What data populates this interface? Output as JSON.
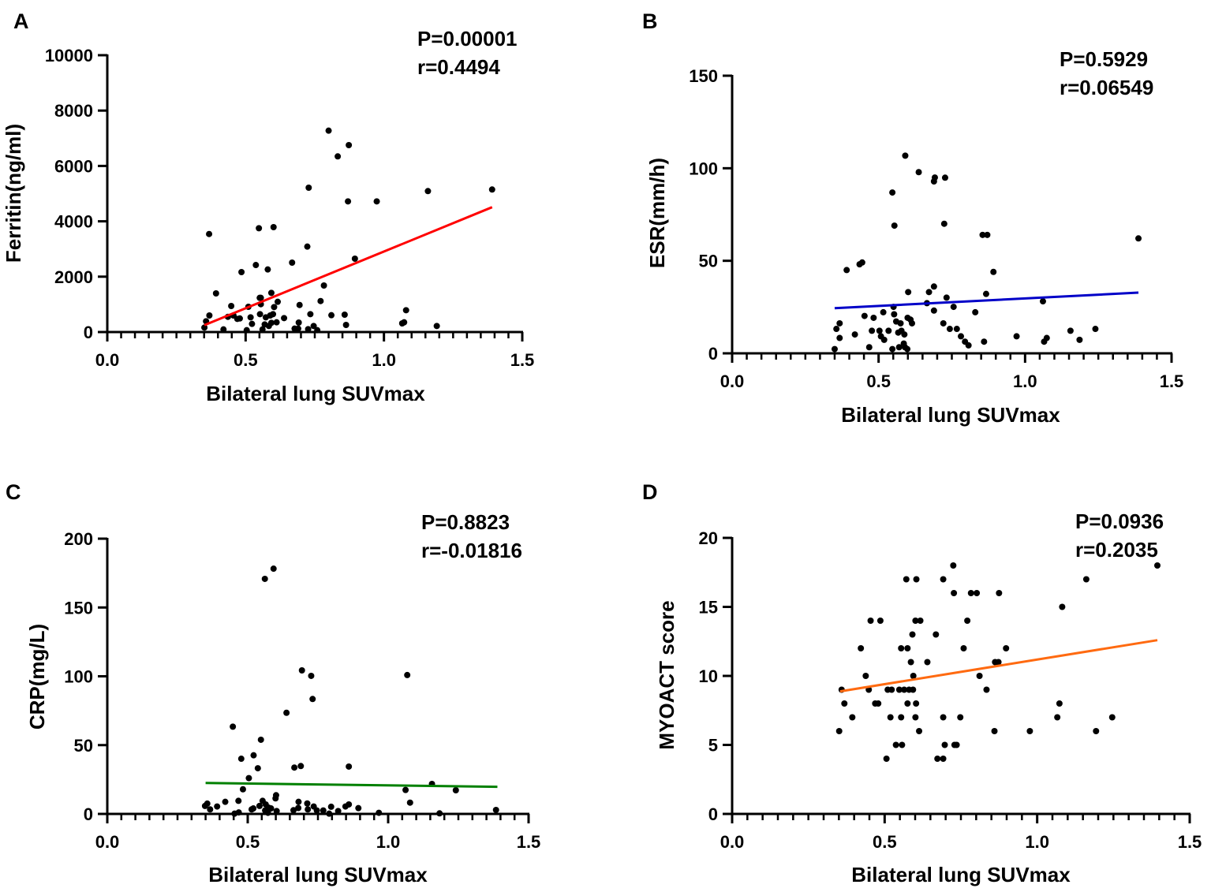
{
  "chart_data": [
    {
      "type": "scatter",
      "panel_label": "A",
      "xlabel": "Bilateral lung SUVmax",
      "ylabel": "Ferritin(ng/ml)",
      "stats": [
        "P=0.00001",
        "r=0.4494"
      ],
      "xlim": [
        0,
        1.5
      ],
      "ylim": [
        0,
        10000
      ],
      "xticks": [
        "0.0",
        "0.5",
        "1.0",
        "1.5"
      ],
      "yticks": [
        "0",
        "2000",
        "4000",
        "6000",
        "8000",
        "10000"
      ],
      "line_color": "#ff0000",
      "fit_line": [
        [
          0.351,
          248
        ],
        [
          1.391,
          4510
        ]
      ],
      "points": [
        [
          0.8,
          7274
        ],
        [
          0.873,
          6752
        ],
        [
          0.833,
          6345
        ],
        [
          0.728,
          5214
        ],
        [
          1.159,
          5091
        ],
        [
          1.391,
          5148
        ],
        [
          0.87,
          4720
        ],
        [
          0.974,
          4720
        ],
        [
          0.368,
          3541
        ],
        [
          0.548,
          3750
        ],
        [
          0.601,
          3789
        ],
        [
          0.723,
          3086
        ],
        [
          0.895,
          2650
        ],
        [
          0.668,
          2507
        ],
        [
          0.537,
          2421
        ],
        [
          0.58,
          2260
        ],
        [
          0.485,
          2165
        ],
        [
          0.783,
          1681
        ],
        [
          0.393,
          1396
        ],
        [
          0.593,
          1415
        ],
        [
          0.551,
          1234
        ],
        [
          0.555,
          1234
        ],
        [
          0.771,
          1120
        ],
        [
          0.616,
          1092
        ],
        [
          0.448,
          940
        ],
        [
          0.51,
          912
        ],
        [
          0.555,
          1006
        ],
        [
          0.603,
          902
        ],
        [
          0.695,
          977
        ],
        [
          1.08,
          788
        ],
        [
          0.369,
          598
        ],
        [
          0.436,
          550
        ],
        [
          0.456,
          598
        ],
        [
          0.47,
          475
        ],
        [
          0.479,
          490
        ],
        [
          0.518,
          532
        ],
        [
          0.552,
          646
        ],
        [
          0.573,
          532
        ],
        [
          0.589,
          598
        ],
        [
          0.599,
          646
        ],
        [
          0.639,
          503
        ],
        [
          0.734,
          646
        ],
        [
          0.81,
          608
        ],
        [
          0.858,
          627
        ],
        [
          0.357,
          389
        ],
        [
          0.351,
          161
        ],
        [
          0.523,
          294
        ],
        [
          0.569,
          275
        ],
        [
          0.584,
          218
        ],
        [
          0.593,
          332
        ],
        [
          0.612,
          351
        ],
        [
          0.692,
          342
        ],
        [
          0.746,
          218
        ],
        [
          0.863,
          256
        ],
        [
          1.066,
          313
        ],
        [
          1.073,
          351
        ],
        [
          1.191,
          218
        ],
        [
          0.42,
          95
        ],
        [
          0.504,
          66
        ],
        [
          0.561,
          95
        ],
        [
          0.677,
          123
        ],
        [
          0.69,
          123
        ],
        [
          0.726,
          104
        ],
        [
          0.759,
          66
        ]
      ]
    },
    {
      "type": "scatter",
      "panel_label": "B",
      "xlabel": "Bilateral lung SUVmax",
      "ylabel": "ESR(mm/h)",
      "stats": [
        "P=0.5929",
        "r=0.06549"
      ],
      "xlim": [
        0,
        1.5
      ],
      "ylim": [
        0,
        150
      ],
      "xticks": [
        "0.0",
        "0.5",
        "1.0",
        "1.5"
      ],
      "yticks": [
        "0",
        "50",
        "100",
        "150"
      ],
      "line_color": "#0000c8",
      "fit_line": [
        [
          0.35,
          24.4
        ],
        [
          1.387,
          32.8
        ]
      ],
      "points": [
        [
          0.591,
          106.8
        ],
        [
          0.637,
          97.9
        ],
        [
          0.692,
          95.0
        ],
        [
          0.689,
          92.9
        ],
        [
          0.727,
          94.9
        ],
        [
          0.547,
          86.9
        ],
        [
          0.554,
          69.0
        ],
        [
          0.724,
          70.0
        ],
        [
          0.855,
          64.0
        ],
        [
          0.871,
          64.0
        ],
        [
          1.387,
          62.1
        ],
        [
          0.444,
          49.1
        ],
        [
          0.435,
          48.1
        ],
        [
          0.391,
          45.0
        ],
        [
          0.892,
          44.0
        ],
        [
          0.689,
          36.1
        ],
        [
          0.601,
          33.1
        ],
        [
          0.672,
          33.1
        ],
        [
          0.867,
          32.1
        ],
        [
          0.732,
          30.1
        ],
        [
          1.061,
          28.1
        ],
        [
          0.665,
          27.1
        ],
        [
          0.551,
          25.1
        ],
        [
          0.756,
          25.1
        ],
        [
          0.689,
          23.1
        ],
        [
          0.516,
          22.2
        ],
        [
          0.83,
          22.2
        ],
        [
          0.452,
          20.2
        ],
        [
          0.483,
          19.2
        ],
        [
          0.553,
          21.1
        ],
        [
          0.599,
          19.2
        ],
        [
          0.609,
          18.2
        ],
        [
          0.367,
          16.2
        ],
        [
          0.56,
          17.2
        ],
        [
          0.575,
          16.2
        ],
        [
          0.614,
          16.2
        ],
        [
          0.721,
          16.2
        ],
        [
          0.356,
          13.2
        ],
        [
          0.419,
          10.2
        ],
        [
          0.477,
          12.2
        ],
        [
          0.503,
          12.2
        ],
        [
          0.534,
          12.2
        ],
        [
          0.567,
          11.2
        ],
        [
          0.578,
          12.2
        ],
        [
          0.588,
          10.2
        ],
        [
          0.743,
          13.2
        ],
        [
          0.767,
          13.2
        ],
        [
          1.155,
          12.2
        ],
        [
          1.24,
          13.2
        ],
        [
          0.367,
          8.3
        ],
        [
          0.508,
          9.2
        ],
        [
          0.519,
          7.3
        ],
        [
          0.781,
          9.2
        ],
        [
          0.971,
          9.2
        ],
        [
          1.074,
          8.3
        ],
        [
          1.065,
          6.3
        ],
        [
          1.186,
          7.3
        ],
        [
          0.795,
          6.3
        ],
        [
          0.807,
          4.3
        ],
        [
          0.86,
          6.3
        ],
        [
          0.35,
          2.3
        ],
        [
          0.468,
          3.3
        ],
        [
          0.547,
          2.3
        ],
        [
          0.57,
          3.3
        ],
        [
          0.586,
          5.3
        ],
        [
          0.59,
          3.3
        ],
        [
          0.598,
          2.3
        ]
      ]
    },
    {
      "type": "scatter",
      "panel_label": "C",
      "xlabel": "Bilateral lung SUVmax",
      "ylabel": "CRP(mg/L)",
      "stats": [
        "P=0.8823",
        "r=-0.01816"
      ],
      "xlim": [
        0,
        1.5
      ],
      "ylim": [
        0,
        200
      ],
      "xticks": [
        "0.0",
        "0.5",
        "1.0",
        "1.5"
      ],
      "yticks": [
        "0",
        "50",
        "100",
        "150",
        "200"
      ],
      "line_color": "#008000",
      "fit_line": [
        [
          0.35,
          22.5
        ],
        [
          1.389,
          19.7
        ]
      ],
      "points": [
        [
          0.592,
          178.2
        ],
        [
          0.561,
          170.8
        ],
        [
          0.693,
          104.3
        ],
        [
          0.726,
          100.3
        ],
        [
          1.068,
          100.9
        ],
        [
          0.731,
          83.5
        ],
        [
          0.638,
          73.5
        ],
        [
          0.447,
          63.4
        ],
        [
          0.547,
          53.9
        ],
        [
          0.521,
          42.6
        ],
        [
          0.477,
          40.1
        ],
        [
          0.689,
          34.8
        ],
        [
          0.666,
          33.7
        ],
        [
          0.86,
          34.4
        ],
        [
          0.536,
          33.2
        ],
        [
          0.504,
          26.0
        ],
        [
          1.156,
          21.8
        ],
        [
          0.483,
          17.9
        ],
        [
          1.062,
          17.4
        ],
        [
          1.241,
          17.2
        ],
        [
          0.601,
          13.6
        ],
        [
          0.599,
          11.3
        ],
        [
          1.078,
          8.2
        ],
        [
          0.467,
          9.5
        ],
        [
          0.42,
          8.8
        ],
        [
          0.553,
          9.5
        ],
        [
          0.356,
          7.5
        ],
        [
          0.348,
          5.8
        ],
        [
          0.391,
          5.4
        ],
        [
          0.366,
          3.3
        ],
        [
          0.681,
          8.8
        ],
        [
          0.712,
          7.6
        ],
        [
          0.68,
          4.3
        ],
        [
          0.714,
          3.3
        ],
        [
          0.735,
          5.4
        ],
        [
          0.797,
          5.2
        ],
        [
          0.86,
          6.9
        ],
        [
          0.848,
          5.4
        ],
        [
          0.894,
          4.2
        ],
        [
          0.542,
          5.8
        ],
        [
          0.564,
          6.9
        ],
        [
          0.574,
          4.6
        ],
        [
          0.583,
          4.0
        ],
        [
          0.603,
          2.1
        ],
        [
          0.562,
          2.5
        ],
        [
          0.514,
          3.3
        ],
        [
          0.52,
          4.0
        ],
        [
          0.746,
          2.5
        ],
        [
          0.769,
          2.5
        ],
        [
          0.822,
          2.1
        ],
        [
          0.663,
          2.7
        ],
        [
          0.468,
          1.1
        ],
        [
          0.453,
          0.2
        ],
        [
          0.572,
          0.8
        ],
        [
          0.79,
          0.2
        ],
        [
          0.967,
          0.8
        ],
        [
          1.183,
          0.4
        ],
        [
          1.384,
          2.9
        ]
      ]
    },
    {
      "type": "scatter",
      "panel_label": "D",
      "xlabel": "Bilateral lung SUVmax",
      "ylabel": "MYOACT score",
      "stats": [
        "P=0.0936",
        "r=0.2035"
      ],
      "xlim": [
        0,
        1.5
      ],
      "ylim": [
        0,
        20
      ],
      "xticks": [
        "0.0",
        "0.5",
        "1.0",
        "1.5"
      ],
      "yticks": [
        "0",
        "5",
        "10",
        "15",
        "20"
      ],
      "line_color": "#ff6a10",
      "fit_line": [
        [
          0.354,
          8.88
        ],
        [
          1.394,
          12.59
        ]
      ],
      "points": [
        [
          0.725,
          18
        ],
        [
          1.394,
          18
        ],
        [
          0.571,
          17
        ],
        [
          0.604,
          17
        ],
        [
          0.692,
          17
        ],
        [
          1.161,
          17
        ],
        [
          0.727,
          16
        ],
        [
          0.783,
          16
        ],
        [
          0.802,
          16
        ],
        [
          0.875,
          16
        ],
        [
          1.082,
          15
        ],
        [
          0.454,
          14
        ],
        [
          0.486,
          14
        ],
        [
          0.601,
          14
        ],
        [
          0.617,
          14
        ],
        [
          0.771,
          14
        ],
        [
          0.591,
          13
        ],
        [
          0.668,
          13
        ],
        [
          0.422,
          12
        ],
        [
          0.554,
          12
        ],
        [
          0.575,
          12
        ],
        [
          0.759,
          12
        ],
        [
          0.898,
          12
        ],
        [
          0.586,
          11
        ],
        [
          0.64,
          11
        ],
        [
          0.862,
          11
        ],
        [
          0.873,
          11
        ],
        [
          0.438,
          10
        ],
        [
          0.594,
          10
        ],
        [
          0.811,
          10
        ],
        [
          0.359,
          9
        ],
        [
          0.448,
          9
        ],
        [
          0.51,
          9
        ],
        [
          0.523,
          9
        ],
        [
          0.548,
          9
        ],
        [
          0.564,
          9
        ],
        [
          0.58,
          9
        ],
        [
          0.593,
          9
        ],
        [
          0.834,
          9
        ],
        [
          0.368,
          8
        ],
        [
          0.469,
          8
        ],
        [
          0.479,
          8
        ],
        [
          0.575,
          8
        ],
        [
          0.603,
          8
        ],
        [
          1.073,
          8
        ],
        [
          0.394,
          7
        ],
        [
          0.519,
          7
        ],
        [
          0.554,
          7
        ],
        [
          0.601,
          7
        ],
        [
          0.692,
          7
        ],
        [
          0.748,
          7
        ],
        [
          1.066,
          7
        ],
        [
          1.246,
          7
        ],
        [
          0.351,
          6
        ],
        [
          0.613,
          6
        ],
        [
          0.86,
          6
        ],
        [
          0.976,
          6
        ],
        [
          1.193,
          6
        ],
        [
          0.537,
          5
        ],
        [
          0.557,
          5
        ],
        [
          0.697,
          5
        ],
        [
          0.729,
          5
        ],
        [
          0.736,
          5
        ],
        [
          0.506,
          4
        ],
        [
          0.673,
          4
        ],
        [
          0.692,
          4
        ]
      ]
    }
  ]
}
